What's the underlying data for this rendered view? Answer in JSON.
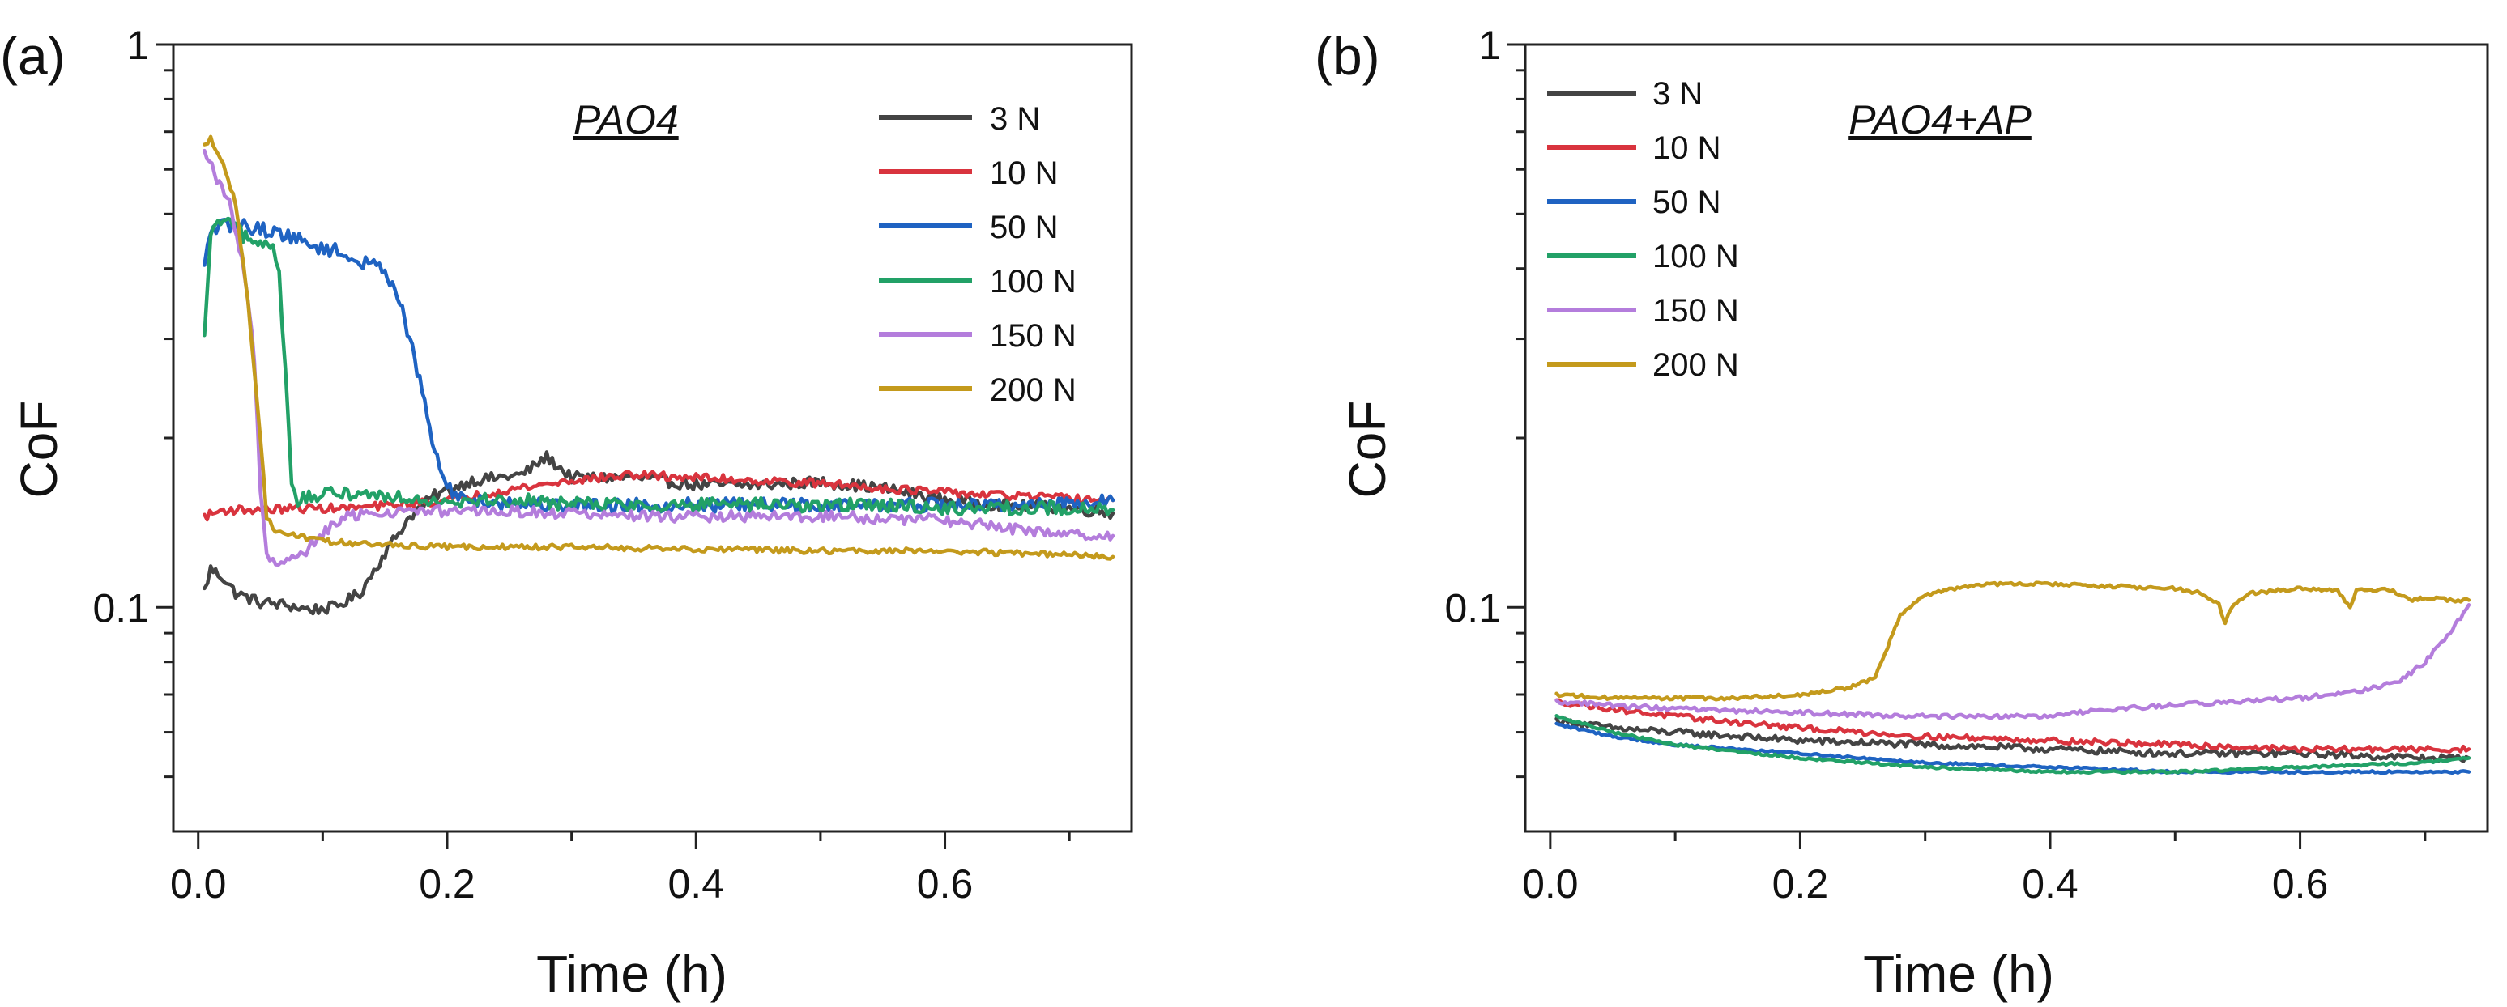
{
  "chart_data": [
    {
      "panel_label": "(a)",
      "type": "line",
      "annotation": "PAO4",
      "xlabel": "Time (h)",
      "ylabel": "CoF",
      "xlim": [
        -0.02,
        0.75
      ],
      "ylim": [
        0.04,
        1
      ],
      "yscale": "log",
      "xticks": [
        {
          "v": 0.0,
          "label": "0.0"
        },
        {
          "v": 0.2,
          "label": "0.2"
        },
        {
          "v": 0.4,
          "label": "0.4"
        },
        {
          "v": 0.6,
          "label": "0.6"
        }
      ],
      "yticks": [
        {
          "v": 0.1,
          "label": "0.1"
        },
        {
          "v": 1,
          "label": "1"
        }
      ],
      "legend_position": "top-right",
      "series": [
        {
          "name": "3 N",
          "color": "#444444",
          "noise": 0.02,
          "points": [
            [
              0.005,
              0.107
            ],
            [
              0.01,
              0.117
            ],
            [
              0.02,
              0.113
            ],
            [
              0.03,
              0.106
            ],
            [
              0.05,
              0.102
            ],
            [
              0.07,
              0.101
            ],
            [
              0.09,
              0.099
            ],
            [
              0.11,
              0.1
            ],
            [
              0.13,
              0.106
            ],
            [
              0.15,
              0.125
            ],
            [
              0.17,
              0.145
            ],
            [
              0.19,
              0.158
            ],
            [
              0.22,
              0.168
            ],
            [
              0.26,
              0.172
            ],
            [
              0.28,
              0.185
            ],
            [
              0.3,
              0.17
            ],
            [
              0.35,
              0.17
            ],
            [
              0.4,
              0.165
            ],
            [
              0.45,
              0.165
            ],
            [
              0.5,
              0.167
            ],
            [
              0.55,
              0.163
            ],
            [
              0.6,
              0.155
            ],
            [
              0.65,
              0.152
            ],
            [
              0.7,
              0.15
            ],
            [
              0.735,
              0.147
            ]
          ]
        },
        {
          "name": "10 N",
          "color": "#d9343e",
          "noise": 0.015,
          "points": [
            [
              0.005,
              0.145
            ],
            [
              0.02,
              0.149
            ],
            [
              0.05,
              0.149
            ],
            [
              0.08,
              0.15
            ],
            [
              0.12,
              0.15
            ],
            [
              0.16,
              0.152
            ],
            [
              0.2,
              0.155
            ],
            [
              0.25,
              0.162
            ],
            [
              0.3,
              0.168
            ],
            [
              0.35,
              0.172
            ],
            [
              0.4,
              0.17
            ],
            [
              0.45,
              0.168
            ],
            [
              0.5,
              0.166
            ],
            [
              0.55,
              0.163
            ],
            [
              0.6,
              0.16
            ],
            [
              0.65,
              0.158
            ],
            [
              0.7,
              0.156
            ],
            [
              0.735,
              0.155
            ]
          ]
        },
        {
          "name": "50 N",
          "color": "#1f63c2",
          "noise": 0.025,
          "points": [
            [
              0.005,
              0.4
            ],
            [
              0.01,
              0.47
            ],
            [
              0.03,
              0.48
            ],
            [
              0.05,
              0.47
            ],
            [
              0.07,
              0.46
            ],
            [
              0.09,
              0.44
            ],
            [
              0.11,
              0.43
            ],
            [
              0.13,
              0.41
            ],
            [
              0.15,
              0.4
            ],
            [
              0.16,
              0.36
            ],
            [
              0.17,
              0.3
            ],
            [
              0.18,
              0.24
            ],
            [
              0.19,
              0.19
            ],
            [
              0.2,
              0.162
            ],
            [
              0.22,
              0.155
            ],
            [
              0.25,
              0.153
            ],
            [
              0.3,
              0.152
            ],
            [
              0.35,
              0.152
            ],
            [
              0.4,
              0.152
            ],
            [
              0.45,
              0.152
            ],
            [
              0.5,
              0.152
            ],
            [
              0.55,
              0.152
            ],
            [
              0.6,
              0.152
            ],
            [
              0.65,
              0.152
            ],
            [
              0.7,
              0.153
            ],
            [
              0.735,
              0.155
            ]
          ]
        },
        {
          "name": "100 N",
          "color": "#22a167",
          "noise": 0.025,
          "points": [
            [
              0.005,
              0.3
            ],
            [
              0.01,
              0.46
            ],
            [
              0.02,
              0.49
            ],
            [
              0.03,
              0.47
            ],
            [
              0.04,
              0.45
            ],
            [
              0.05,
              0.44
            ],
            [
              0.06,
              0.44
            ],
            [
              0.065,
              0.4
            ],
            [
              0.07,
              0.26
            ],
            [
              0.075,
              0.17
            ],
            [
              0.08,
              0.155
            ],
            [
              0.1,
              0.158
            ],
            [
              0.12,
              0.16
            ],
            [
              0.15,
              0.158
            ],
            [
              0.2,
              0.155
            ],
            [
              0.25,
              0.155
            ],
            [
              0.3,
              0.153
            ],
            [
              0.35,
              0.152
            ],
            [
              0.4,
              0.152
            ],
            [
              0.45,
              0.152
            ],
            [
              0.5,
              0.152
            ],
            [
              0.55,
              0.152
            ],
            [
              0.6,
              0.15
            ],
            [
              0.65,
              0.15
            ],
            [
              0.7,
              0.15
            ],
            [
              0.735,
              0.149
            ]
          ]
        },
        {
          "name": "150 N",
          "color": "#b47ddc",
          "noise": 0.02,
          "points": [
            [
              0.005,
              0.64
            ],
            [
              0.015,
              0.58
            ],
            [
              0.025,
              0.52
            ],
            [
              0.035,
              0.42
            ],
            [
              0.045,
              0.28
            ],
            [
              0.05,
              0.16
            ],
            [
              0.055,
              0.125
            ],
            [
              0.06,
              0.12
            ],
            [
              0.08,
              0.122
            ],
            [
              0.1,
              0.135
            ],
            [
              0.12,
              0.145
            ],
            [
              0.15,
              0.148
            ],
            [
              0.2,
              0.148
            ],
            [
              0.25,
              0.148
            ],
            [
              0.3,
              0.147
            ],
            [
              0.35,
              0.145
            ],
            [
              0.4,
              0.145
            ],
            [
              0.45,
              0.145
            ],
            [
              0.5,
              0.145
            ],
            [
              0.55,
              0.144
            ],
            [
              0.6,
              0.143
            ],
            [
              0.65,
              0.138
            ],
            [
              0.7,
              0.135
            ],
            [
              0.735,
              0.134
            ]
          ]
        },
        {
          "name": "200 N",
          "color": "#c49a1c",
          "noise": 0.01,
          "points": [
            [
              0.005,
              0.66
            ],
            [
              0.01,
              0.68
            ],
            [
              0.02,
              0.62
            ],
            [
              0.03,
              0.52
            ],
            [
              0.04,
              0.35
            ],
            [
              0.05,
              0.2
            ],
            [
              0.055,
              0.145
            ],
            [
              0.06,
              0.138
            ],
            [
              0.07,
              0.135
            ],
            [
              0.1,
              0.131
            ],
            [
              0.15,
              0.129
            ],
            [
              0.2,
              0.128
            ],
            [
              0.3,
              0.128
            ],
            [
              0.4,
              0.127
            ],
            [
              0.5,
              0.126
            ],
            [
              0.6,
              0.126
            ],
            [
              0.7,
              0.124
            ],
            [
              0.735,
              0.123
            ]
          ]
        }
      ]
    },
    {
      "panel_label": "(b)",
      "type": "line",
      "annotation": "PAO4+AP",
      "xlabel": "Time (h)",
      "ylabel": "CoF",
      "xlim": [
        -0.02,
        0.75
      ],
      "ylim": [
        0.04,
        1
      ],
      "yscale": "log",
      "xticks": [
        {
          "v": 0.0,
          "label": "0.0"
        },
        {
          "v": 0.2,
          "label": "0.2"
        },
        {
          "v": 0.4,
          "label": "0.4"
        },
        {
          "v": 0.6,
          "label": "0.6"
        }
      ],
      "yticks": [
        {
          "v": 0.1,
          "label": "0.1"
        },
        {
          "v": 1,
          "label": "1"
        }
      ],
      "legend_position": "top-left",
      "series": [
        {
          "name": "3 N",
          "color": "#444444",
          "noise": 0.012,
          "points": [
            [
              0.005,
              0.063
            ],
            [
              0.05,
              0.061
            ],
            [
              0.1,
              0.06
            ],
            [
              0.2,
              0.058
            ],
            [
              0.3,
              0.057
            ],
            [
              0.4,
              0.056
            ],
            [
              0.5,
              0.055
            ],
            [
              0.6,
              0.055
            ],
            [
              0.7,
              0.054
            ],
            [
              0.735,
              0.054
            ]
          ]
        },
        {
          "name": "10 N",
          "color": "#d9343e",
          "noise": 0.01,
          "points": [
            [
              0.005,
              0.068
            ],
            [
              0.05,
              0.066
            ],
            [
              0.1,
              0.064
            ],
            [
              0.2,
              0.061
            ],
            [
              0.3,
              0.059
            ],
            [
              0.4,
              0.058
            ],
            [
              0.5,
              0.057
            ],
            [
              0.6,
              0.056
            ],
            [
              0.7,
              0.056
            ],
            [
              0.735,
              0.056
            ]
          ]
        },
        {
          "name": "50 N",
          "color": "#1f63c2",
          "noise": 0.004,
          "points": [
            [
              0.005,
              0.062
            ],
            [
              0.05,
              0.059
            ],
            [
              0.1,
              0.057
            ],
            [
              0.2,
              0.055
            ],
            [
              0.3,
              0.053
            ],
            [
              0.4,
              0.052
            ],
            [
              0.5,
              0.051
            ],
            [
              0.6,
              0.051
            ],
            [
              0.7,
              0.051
            ],
            [
              0.735,
              0.051
            ]
          ]
        },
        {
          "name": "100 N",
          "color": "#22a167",
          "noise": 0.004,
          "points": [
            [
              0.005,
              0.064
            ],
            [
              0.05,
              0.06
            ],
            [
              0.1,
              0.057
            ],
            [
              0.2,
              0.054
            ],
            [
              0.3,
              0.052
            ],
            [
              0.4,
              0.051
            ],
            [
              0.5,
              0.051
            ],
            [
              0.6,
              0.052
            ],
            [
              0.7,
              0.053
            ],
            [
              0.735,
              0.054
            ]
          ]
        },
        {
          "name": "150 N",
          "color": "#b47ddc",
          "noise": 0.008,
          "points": [
            [
              0.005,
              0.068
            ],
            [
              0.05,
              0.067
            ],
            [
              0.1,
              0.066
            ],
            [
              0.2,
              0.065
            ],
            [
              0.3,
              0.064
            ],
            [
              0.4,
              0.064
            ],
            [
              0.45,
              0.066
            ],
            [
              0.5,
              0.067
            ],
            [
              0.55,
              0.068
            ],
            [
              0.6,
              0.069
            ],
            [
              0.65,
              0.071
            ],
            [
              0.68,
              0.074
            ],
            [
              0.7,
              0.08
            ],
            [
              0.72,
              0.09
            ],
            [
              0.735,
              0.101
            ]
          ]
        },
        {
          "name": "200 N",
          "color": "#c49a1c",
          "noise": 0.006,
          "points": [
            [
              0.005,
              0.07
            ],
            [
              0.05,
              0.069
            ],
            [
              0.1,
              0.069
            ],
            [
              0.15,
              0.069
            ],
            [
              0.2,
              0.07
            ],
            [
              0.24,
              0.072
            ],
            [
              0.26,
              0.075
            ],
            [
              0.27,
              0.085
            ],
            [
              0.28,
              0.097
            ],
            [
              0.3,
              0.105
            ],
            [
              0.33,
              0.109
            ],
            [
              0.36,
              0.11
            ],
            [
              0.4,
              0.11
            ],
            [
              0.45,
              0.109
            ],
            [
              0.5,
              0.108
            ],
            [
              0.52,
              0.106
            ],
            [
              0.535,
              0.101
            ],
            [
              0.54,
              0.094
            ],
            [
              0.545,
              0.1
            ],
            [
              0.56,
              0.106
            ],
            [
              0.6,
              0.108
            ],
            [
              0.63,
              0.107
            ],
            [
              0.64,
              0.1
            ],
            [
              0.645,
              0.107
            ],
            [
              0.67,
              0.108
            ],
            [
              0.69,
              0.103
            ],
            [
              0.7,
              0.104
            ],
            [
              0.72,
              0.103
            ],
            [
              0.735,
              0.103
            ]
          ]
        }
      ]
    }
  ]
}
